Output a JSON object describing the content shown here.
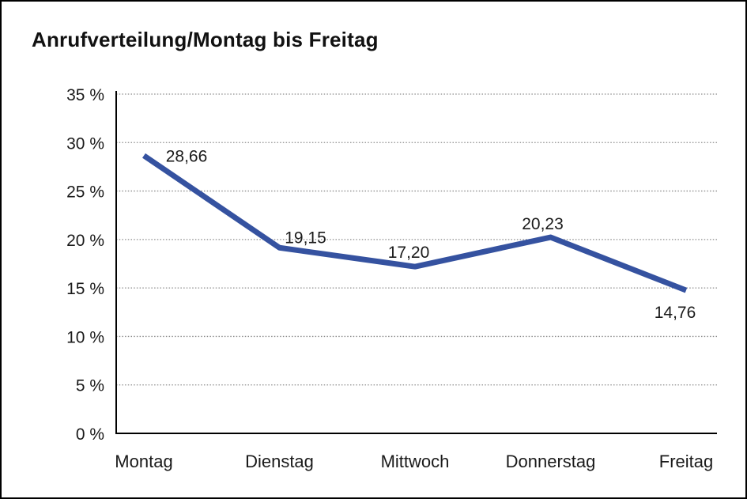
{
  "window": {
    "background": "#ffffff",
    "border_color": "#000000"
  },
  "header": {
    "title": "Anrufverteilung/Montag bis Freitag"
  },
  "chart_data": {
    "type": "line",
    "title": "Anrufverteilung/Montag bis Freitag",
    "categories": [
      "Montag",
      "Dienstag",
      "Mittwoch",
      "Donnerstag",
      "Freitag"
    ],
    "series": [
      {
        "name": "Anrufverteilung",
        "values": [
          28.66,
          19.15,
          17.2,
          20.23,
          14.76
        ]
      }
    ],
    "value_labels": [
      "28,66",
      "19,15",
      "17,20",
      "20,23",
      "14,76"
    ],
    "y_axis": {
      "min": 0,
      "max": 35,
      "step": 5,
      "tick_suffix": " %",
      "tick_labels": [
        "0 %",
        "5 %",
        "10 %",
        "15 %",
        "20 %",
        "25 %",
        "30 %",
        "35 %"
      ]
    },
    "x_axis_label": "",
    "y_axis_label": "",
    "legend": "none",
    "grid": "dotted-horizontal",
    "line_color": "#3552A0",
    "axis_color": "#000000",
    "grid_color": "#8c8c8c",
    "text_color": "#1a1a1a"
  }
}
